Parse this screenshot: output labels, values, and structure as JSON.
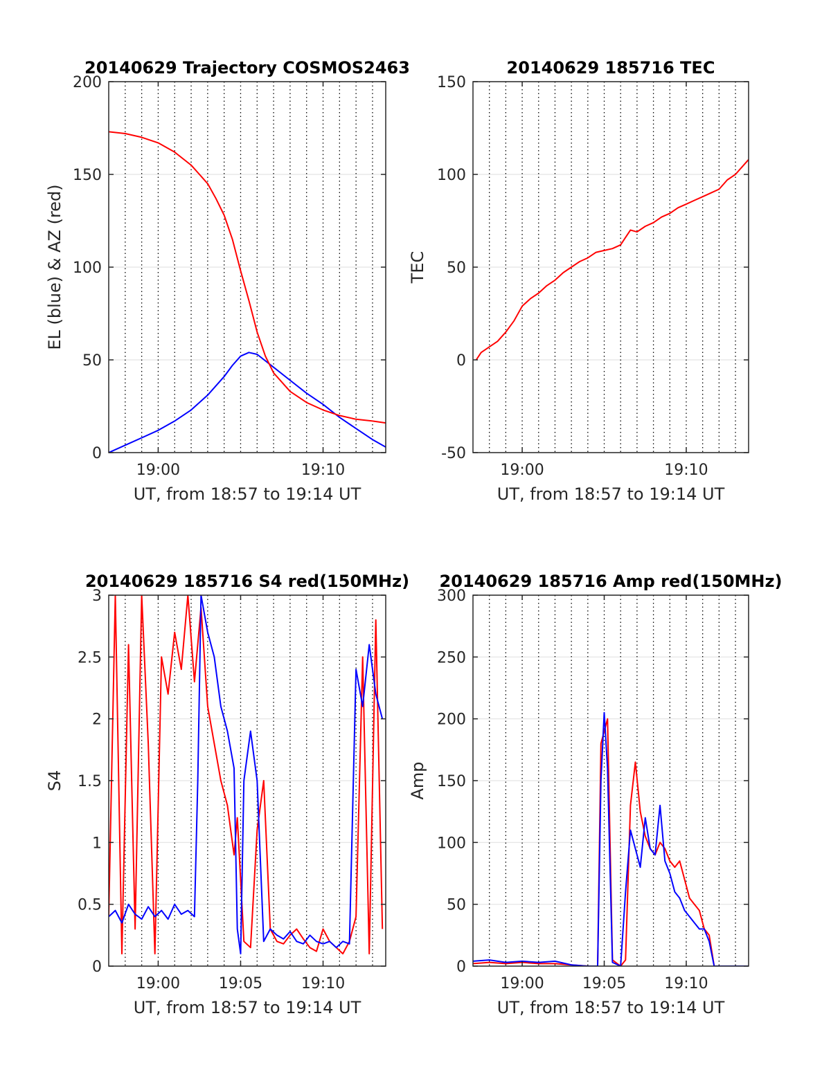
{
  "colors": {
    "el": "#0000ff",
    "az": "#ff0000",
    "red": "#ff0000",
    "blue": "#0000ff",
    "grid": "#000000",
    "axes": "#262626"
  },
  "chart_data": [
    {
      "type": "line",
      "title": "20140629 Trajectory COSMOS2463",
      "xlabel": "UT, from 18:57 to 19:14 UT",
      "ylabel": "EL (blue) & AZ (red)",
      "xlim": [
        0,
        16.8
      ],
      "ylim": [
        0,
        200
      ],
      "xticks": [
        3,
        13
      ],
      "xtick_labels": [
        "19:00",
        "19:10"
      ],
      "yticks": [
        0,
        50,
        100,
        150,
        200
      ],
      "ytick_labels": [
        "0",
        "50",
        "100",
        "150",
        "200"
      ],
      "grid": "dotted vertical lines every minute, solid horizontal lines",
      "series": [
        {
          "color": "blue",
          "x": [
            0,
            1,
            2,
            3,
            4,
            5,
            6,
            7,
            7.5,
            8,
            8.5,
            9,
            10,
            11,
            12,
            13,
            14,
            15,
            16,
            16.8
          ],
          "y": [
            0,
            4,
            8,
            12,
            17,
            23,
            31,
            41,
            47,
            52,
            54,
            53,
            46,
            39,
            32,
            26,
            19,
            13,
            7,
            3
          ]
        },
        {
          "color": "red",
          "x": [
            0,
            1,
            2,
            3,
            4,
            5,
            5.5,
            6,
            6.5,
            7,
            7.5,
            8,
            8.5,
            9,
            9.5,
            10,
            11,
            12,
            13,
            14,
            15,
            16,
            16.8
          ],
          "y": [
            173,
            172,
            170,
            167,
            162,
            155,
            150,
            145,
            137,
            128,
            115,
            98,
            82,
            65,
            52,
            43,
            33,
            27,
            23,
            20,
            18,
            17,
            16
          ]
        }
      ]
    },
    {
      "type": "line",
      "title": "20140629 185716 TEC",
      "xlabel": "UT, from 18:57 to 19:14 UT",
      "ylabel": "TEC",
      "xlim": [
        0,
        16.8
      ],
      "ylim": [
        -50,
        150
      ],
      "xticks": [
        3,
        13
      ],
      "xtick_labels": [
        "19:00",
        "19:10"
      ],
      "yticks": [
        -50,
        0,
        50,
        100,
        150
      ],
      "ytick_labels": [
        "-50",
        "0",
        "50",
        "100",
        "150"
      ],
      "series": [
        {
          "color": "red",
          "x": [
            0.2,
            0.5,
            1,
            1.5,
            2,
            2.5,
            3,
            3.5,
            4,
            4.5,
            5,
            5.5,
            6,
            6.5,
            7,
            7.5,
            8,
            8.5,
            9,
            9.3,
            9.6,
            10,
            10.5,
            11,
            11.5,
            12,
            12.5,
            13,
            13.5,
            14,
            14.5,
            15,
            15.5,
            16,
            16.5,
            16.8
          ],
          "y": [
            0,
            4,
            7,
            10,
            15,
            21,
            29,
            33,
            36,
            40,
            43,
            47,
            50,
            53,
            55,
            58,
            59,
            60,
            62,
            66,
            70,
            69,
            72,
            74,
            77,
            79,
            82,
            84,
            86,
            88,
            90,
            92,
            97,
            100,
            105,
            108
          ]
        }
      ]
    },
    {
      "type": "line",
      "title": "20140629 185716 S4 red(150MHz)",
      "xlabel": "UT, from 18:57 to 19:14 UT",
      "ylabel": "S4",
      "xlim": [
        0,
        16.8
      ],
      "ylim": [
        0,
        3
      ],
      "xticks": [
        3,
        8,
        13
      ],
      "xtick_labels": [
        "19:00",
        "19:05",
        "19:10"
      ],
      "yticks": [
        0,
        0.5,
        1,
        1.5,
        2,
        2.5,
        3
      ],
      "ytick_labels": [
        "0",
        "0.5",
        "1",
        "1.5",
        "2",
        "2.5",
        "3"
      ],
      "series": [
        {
          "color": "red",
          "x": [
            0,
            0.4,
            0.8,
            1.2,
            1.6,
            2,
            2.4,
            2.8,
            3.2,
            3.6,
            4,
            4.4,
            4.8,
            5.2,
            5.6,
            6,
            6.4,
            6.8,
            7.2,
            7.6,
            7.8,
            8.2,
            8.6,
            9,
            9.4,
            9.8,
            10.2,
            10.6,
            11,
            11.4,
            11.8,
            12.2,
            12.6,
            13,
            13.4,
            13.8,
            14.2,
            14.6,
            15,
            15.4,
            15.8,
            16.2,
            16.6
          ],
          "y": [
            0.4,
            3,
            0.1,
            2.6,
            0.3,
            3,
            1.8,
            0.1,
            2.5,
            2.2,
            2.7,
            2.4,
            3,
            2.3,
            2.9,
            2.1,
            1.8,
            1.5,
            1.3,
            0.9,
            1.2,
            0.2,
            0.15,
            1.1,
            1.5,
            0.3,
            0.2,
            0.18,
            0.25,
            0.3,
            0.22,
            0.15,
            0.12,
            0.3,
            0.2,
            0.15,
            0.1,
            0.2,
            0.4,
            2.5,
            0.1,
            2.8,
            0.3
          ]
        },
        {
          "color": "blue",
          "x": [
            0,
            0.4,
            0.8,
            1.2,
            1.6,
            2,
            2.4,
            2.8,
            3.2,
            3.6,
            4,
            4.4,
            4.8,
            5.2,
            5.4,
            5.6,
            6,
            6.4,
            6.8,
            7.2,
            7.6,
            7.8,
            8,
            8.2,
            8.6,
            9,
            9.4,
            9.8,
            10.2,
            10.6,
            11,
            11.4,
            11.8,
            12.2,
            12.6,
            13,
            13.4,
            13.8,
            14.2,
            14.6,
            15,
            15.4,
            15.8,
            16.2,
            16.6
          ],
          "y": [
            0.4,
            0.45,
            0.35,
            0.5,
            0.42,
            0.38,
            0.48,
            0.4,
            0.45,
            0.38,
            0.5,
            0.42,
            0.45,
            0.4,
            1.5,
            3,
            2.7,
            2.5,
            2.1,
            1.9,
            1.6,
            0.3,
            0.1,
            1.5,
            1.9,
            1.5,
            0.2,
            0.3,
            0.25,
            0.22,
            0.28,
            0.2,
            0.18,
            0.25,
            0.2,
            0.18,
            0.2,
            0.15,
            0.2,
            0.18,
            2.4,
            2.1,
            2.6,
            2.2,
            2.0
          ]
        }
      ]
    },
    {
      "type": "line",
      "title": "20140629 185716 Amp red(150MHz)",
      "xlabel": "UT, from 18:57 to 19:14 UT",
      "ylabel": "Amp",
      "xlim": [
        0,
        16.8
      ],
      "ylim": [
        0,
        300
      ],
      "xticks": [
        3,
        8,
        13
      ],
      "xtick_labels": [
        "19:00",
        "19:05",
        "19:10"
      ],
      "yticks": [
        0,
        50,
        100,
        150,
        200,
        250,
        300
      ],
      "ytick_labels": [
        "0",
        "50",
        "100",
        "150",
        "200",
        "250",
        "300"
      ],
      "series": [
        {
          "color": "red",
          "x": [
            0,
            1,
            2,
            3,
            4,
            5,
            6,
            7,
            7.6,
            7.8,
            8.2,
            8.5,
            9,
            9.3,
            9.6,
            9.9,
            10.2,
            10.5,
            10.8,
            11.1,
            11.4,
            11.7,
            12,
            12.3,
            12.6,
            12.9,
            13.2,
            13.5,
            13.8,
            14.1,
            14.4,
            14.7,
            15,
            15.5,
            16,
            16.8
          ],
          "y": [
            2,
            3,
            2,
            3,
            2,
            2,
            1,
            0,
            0,
            180,
            200,
            5,
            0,
            5,
            130,
            165,
            125,
            105,
            95,
            90,
            100,
            95,
            85,
            80,
            85,
            70,
            55,
            50,
            45,
            30,
            25,
            0,
            0,
            0,
            0,
            0
          ]
        },
        {
          "color": "blue",
          "x": [
            0,
            1,
            2,
            3,
            4,
            5,
            6,
            7,
            7.6,
            7.8,
            8,
            8.2,
            8.5,
            9,
            9.3,
            9.6,
            9.9,
            10.2,
            10.5,
            10.8,
            11.1,
            11.4,
            11.7,
            12,
            12.3,
            12.6,
            12.9,
            13.2,
            13.5,
            13.8,
            14.1,
            14.4,
            14.7,
            15,
            15.5,
            16,
            16.8
          ],
          "y": [
            4,
            5,
            3,
            4,
            3,
            4,
            1,
            0,
            0,
            150,
            205,
            160,
            3,
            0,
            60,
            110,
            95,
            80,
            120,
            95,
            90,
            130,
            85,
            75,
            60,
            55,
            45,
            40,
            35,
            30,
            30,
            20,
            0,
            0,
            0,
            0,
            0
          ]
        }
      ]
    }
  ]
}
